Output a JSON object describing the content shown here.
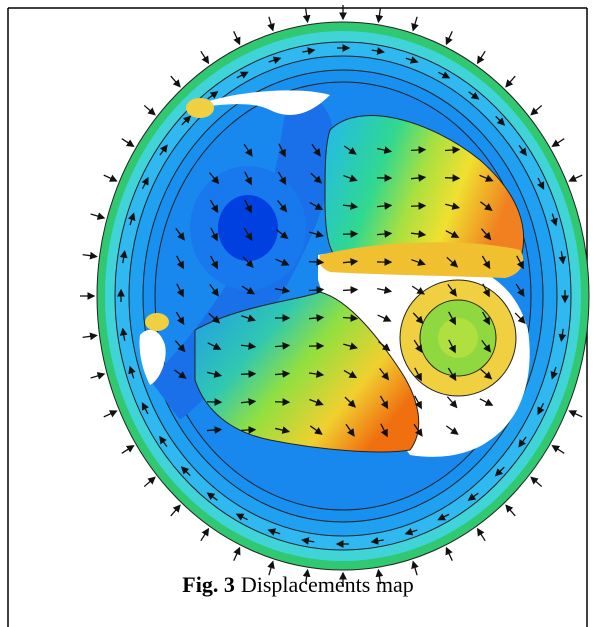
{
  "caption": {
    "label": "Fig. 3",
    "text": "Displacements map"
  }
}
